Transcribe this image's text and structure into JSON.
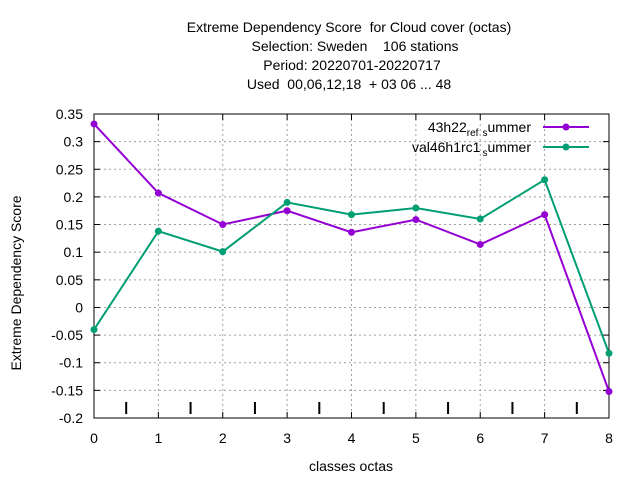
{
  "chart_data": {
    "type": "line",
    "title_lines": [
      "Extreme Dependency Score  for Cloud cover (octas)",
      "Selection: Sweden    106 stations",
      "Period: 20220701-20220717",
      "Used  00,06,12,18  + 03 06 ... 48"
    ],
    "xlabel": "classes octas",
    "ylabel": "Extreme Dependency Score",
    "x": [
      0,
      1,
      2,
      3,
      4,
      5,
      6,
      7,
      8
    ],
    "xlim": [
      0,
      8
    ],
    "ylim": [
      -0.2,
      0.35
    ],
    "y_ticks": [
      -0.2,
      -0.15,
      -0.1,
      -0.05,
      0,
      0.05,
      0.1,
      0.15,
      0.2,
      0.25,
      0.3,
      0.35
    ],
    "y_tick_labels": [
      "-0.2",
      "-0.15",
      "-0.1",
      "-0.05",
      "0",
      "0.05",
      "0.1",
      "0.15",
      "0.2",
      "0.25",
      "0.3",
      "0.35"
    ],
    "x_tick_labels": [
      "0",
      "1",
      "2",
      "3",
      "4",
      "5",
      "6",
      "7",
      "8"
    ],
    "class_boundaries": [
      0.5,
      1.5,
      2.5,
      3.5,
      4.5,
      5.5,
      6.5,
      7.5
    ],
    "grid": true,
    "legend_position": "top-right",
    "series": [
      {
        "name": "43h22_ref_summer",
        "legend_main": "43h22",
        "legend_sub1": "ref",
        "legend_mid": "s",
        "legend_end": "ummer",
        "color": "#9400d3",
        "values": [
          0.332,
          0.207,
          0.15,
          0.175,
          0.136,
          0.159,
          0.114,
          0.168,
          -0.152
        ]
      },
      {
        "name": "val46h1rc1_summer",
        "legend_main": "val46h1rc1",
        "legend_mid": "s",
        "legend_end": "ummer",
        "color": "#009e73",
        "values": [
          -0.04,
          0.138,
          0.101,
          0.19,
          0.168,
          0.18,
          0.16,
          0.231,
          -0.083
        ]
      }
    ]
  }
}
